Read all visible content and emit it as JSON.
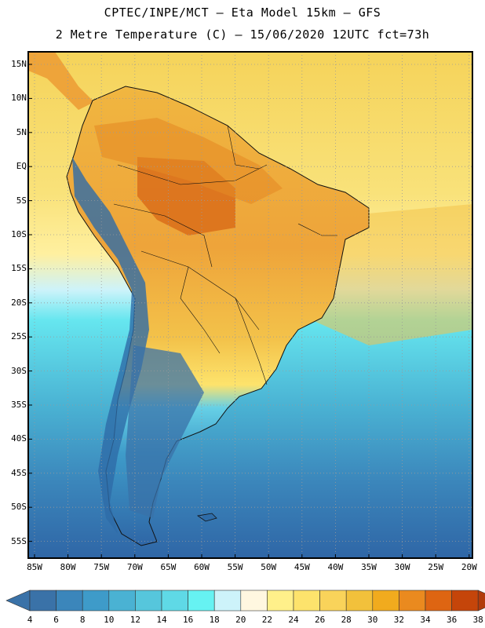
{
  "header": {
    "line1": "CPTEC/INPE/MCT –  Eta Model 15km – GFS",
    "line2": "2 Metre Temperature (C) – 15/06/2020 12UTC fct=73h"
  },
  "map": {
    "lat_labels": [
      "15N",
      "10N",
      "5N",
      "EQ",
      "5S",
      "10S",
      "15S",
      "20S",
      "25S",
      "30S",
      "35S",
      "40S",
      "45S",
      "50S",
      "55S"
    ],
    "lon_labels": [
      "85W",
      "80W",
      "75W",
      "70W",
      "65W",
      "60W",
      "55W",
      "50W",
      "45W",
      "40W",
      "35W",
      "30W",
      "25W",
      "20W"
    ]
  },
  "colorbar": {
    "labels": [
      "4",
      "6",
      "8",
      "10",
      "12",
      "14",
      "16",
      "18",
      "20",
      "22",
      "24",
      "26",
      "28",
      "30",
      "32",
      "34",
      "36",
      "38"
    ],
    "colors": [
      "#3a72a8",
      "#3b86bb",
      "#3e9bc9",
      "#4ab2d3",
      "#56c6dc",
      "#5fd9e6",
      "#66f2f2",
      "#cdf3fa",
      "#fff7e0",
      "#fff08a",
      "#fde36c",
      "#f9d35a",
      "#f2c13b",
      "#f1ab1e",
      "#ea8a1f",
      "#de6512",
      "#c5450a"
    ],
    "under_color": "#3a72a8",
    "over_color": "#b13b0b"
  },
  "colors": {
    "ocean_south": "#2f66a6",
    "ocean_mid": "#55c6de",
    "ocean_north": "#f8e06a",
    "land_warm": "#eea43a",
    "amazon_hot": "#d96d1a",
    "andes_cold": "#2e6ca8",
    "coast": "#111111"
  }
}
